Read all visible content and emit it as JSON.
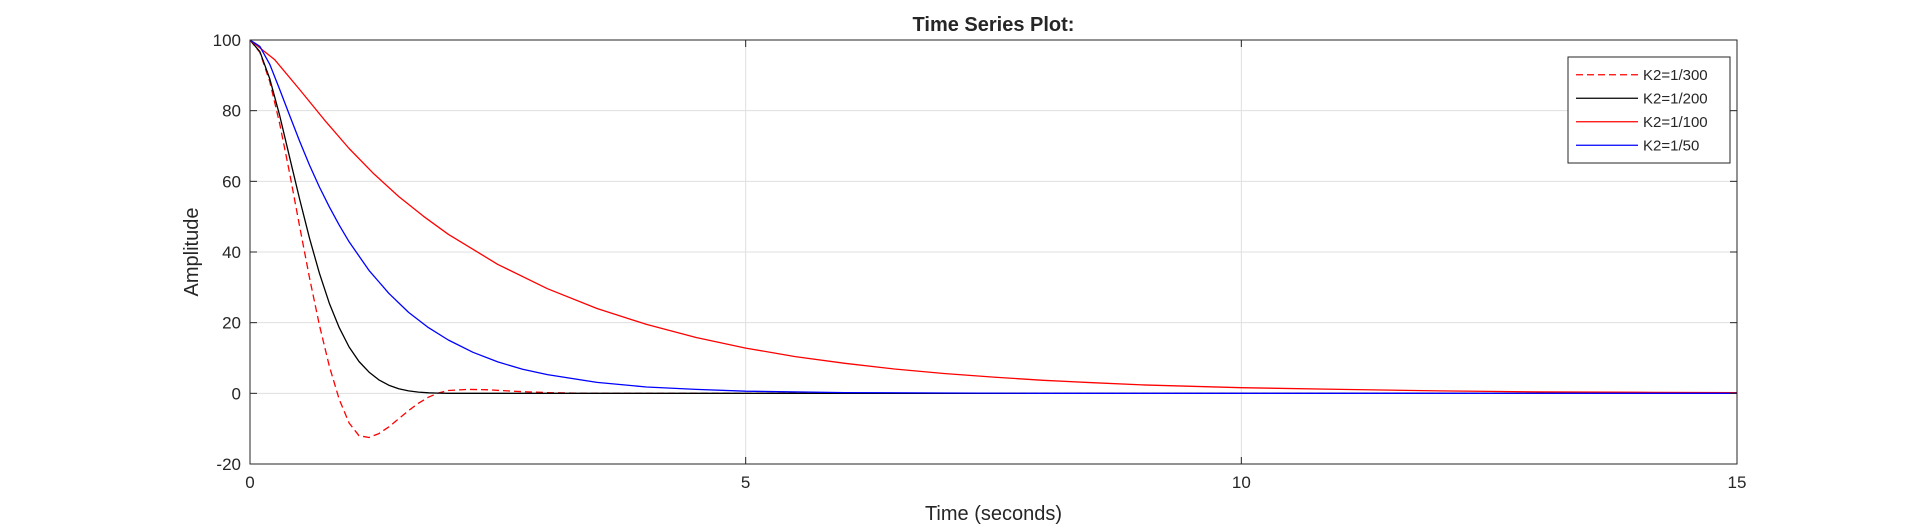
{
  "chart_data": {
    "type": "line",
    "title": "Time Series Plot:",
    "xlabel": "Time (seconds)",
    "ylabel": "Amplitude",
    "xlim": [
      0,
      15
    ],
    "ylim": [
      -20,
      100
    ],
    "xticks": [
      0,
      5,
      10,
      15
    ],
    "yticks": [
      -20,
      0,
      20,
      40,
      60,
      80,
      100
    ],
    "grid": true,
    "box": true,
    "legend_position": "top-right",
    "series": [
      {
        "name": "K2=1/300",
        "color": "#ff0000",
        "dash": "dashed",
        "x": [
          0,
          0.1,
          0.2,
          0.3,
          0.4,
          0.5,
          0.6,
          0.7,
          0.8,
          0.9,
          1.0,
          1.1,
          1.2,
          1.3,
          1.4,
          1.5,
          1.6,
          1.7,
          1.8,
          1.9,
          2.0,
          2.2,
          2.4,
          2.6,
          2.8,
          3.0,
          3.3,
          3.6,
          4.0,
          5,
          6,
          8,
          10,
          12,
          15
        ],
        "y": [
          100,
          96.5,
          88.2,
          76.3,
          62.2,
          47.3,
          32.7,
          19.3,
          7.7,
          -1.7,
          -8.4,
          -12.0,
          -12.5,
          -11.4,
          -9.5,
          -7.2,
          -4.9,
          -2.8,
          -1.1,
          0.1,
          0.8,
          1.1,
          1.0,
          0.7,
          0.4,
          0.2,
          0.05,
          0.0,
          0.0,
          0,
          0,
          0,
          0,
          0,
          0
        ]
      },
      {
        "name": "K2=1/200",
        "color": "#000000",
        "dash": "solid",
        "x": [
          0,
          0.1,
          0.2,
          0.3,
          0.4,
          0.5,
          0.6,
          0.7,
          0.8,
          0.9,
          1.0,
          1.1,
          1.2,
          1.3,
          1.4,
          1.5,
          1.6,
          1.7,
          1.8,
          1.9,
          2.0,
          2.2,
          2.5,
          3.0,
          4,
          6,
          8,
          10,
          12,
          15
        ],
        "y": [
          100,
          96.7,
          89.0,
          78.6,
          66.7,
          55.0,
          43.9,
          34.0,
          25.5,
          18.6,
          13.1,
          9.0,
          6.0,
          3.8,
          2.3,
          1.3,
          0.7,
          0.35,
          0.15,
          0.06,
          0.0,
          0.0,
          0.0,
          0.0,
          0,
          0,
          0,
          0,
          0,
          0
        ]
      },
      {
        "name": "K2=1/100",
        "color": "#ff0000",
        "dash": "solid",
        "x": [
          0,
          0.25,
          0.5,
          0.75,
          1.0,
          1.25,
          1.5,
          1.75,
          2.0,
          2.5,
          3.0,
          3.5,
          4.0,
          4.5,
          5.0,
          5.5,
          6.0,
          6.5,
          7.0,
          7.5,
          8.0,
          8.5,
          9.0,
          9.5,
          10.0,
          11.0,
          12.0,
          13.0,
          14.0,
          15.0
        ],
        "y": [
          100,
          94.4,
          86.0,
          77.4,
          69.3,
          62.1,
          55.7,
          50.1,
          45.0,
          36.5,
          29.6,
          24.0,
          19.5,
          15.8,
          12.8,
          10.4,
          8.5,
          6.9,
          5.6,
          4.6,
          3.7,
          3.0,
          2.4,
          2.0,
          1.6,
          1.1,
          0.7,
          0.4,
          0.3,
          0.2
        ]
      },
      {
        "name": "K2=1/50",
        "color": "#0000ff",
        "dash": "solid",
        "x": [
          0,
          0.1,
          0.2,
          0.3,
          0.4,
          0.5,
          0.6,
          0.7,
          0.8,
          0.9,
          1.0,
          1.2,
          1.4,
          1.6,
          1.8,
          2.0,
          2.25,
          2.5,
          2.75,
          3.0,
          3.5,
          4.0,
          4.5,
          5.0,
          6.0,
          7.0,
          8.0,
          10.0,
          12.0,
          15.0
        ],
        "y": [
          100,
          98.2,
          93.1,
          86.0,
          78.6,
          71.4,
          64.6,
          58.4,
          52.8,
          47.6,
          42.9,
          34.8,
          28.3,
          22.9,
          18.6,
          15.1,
          11.6,
          8.9,
          6.8,
          5.3,
          3.1,
          1.8,
          1.1,
          0.6,
          0.2,
          0.1,
          0.0,
          0.0,
          0.0,
          0.0
        ]
      }
    ]
  }
}
